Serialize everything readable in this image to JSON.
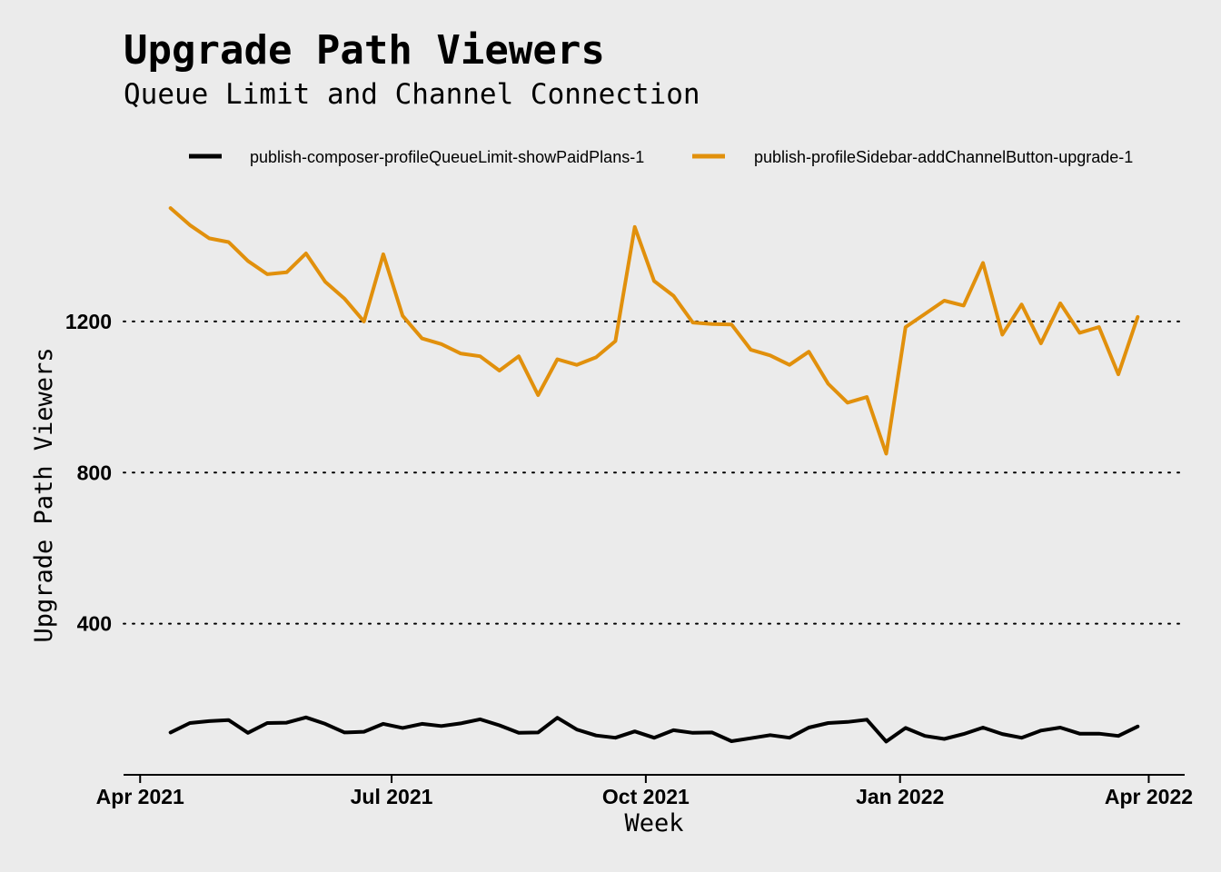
{
  "chart_data": {
    "type": "line",
    "title": "Upgrade Path Viewers",
    "subtitle": "Queue Limit and Channel Connection",
    "xlabel": "Week",
    "ylabel": "Upgrade Path Viewers",
    "x_ticks": [
      {
        "label": "Apr 2021",
        "date": "2021-04-01"
      },
      {
        "label": "Jul 2021",
        "date": "2021-07-01"
      },
      {
        "label": "Oct 2021",
        "date": "2021-10-01"
      },
      {
        "label": "Jan 2022",
        "date": "2022-01-01"
      },
      {
        "label": "Apr 2022",
        "date": "2022-04-01"
      }
    ],
    "y_ticks": [
      400,
      800,
      1200
    ],
    "xlim": [
      "2021-03-26",
      "2022-04-14"
    ],
    "ylim": [
      0,
      1570
    ],
    "grid": "horizontal dotted",
    "legend_position": "top",
    "series": [
      {
        "name": "publish-composer-profileQueueLimit-showPaidPlans-1",
        "color": "#000000",
        "points": [
          [
            "2021-04-12",
            112
          ],
          [
            "2021-04-19",
            137
          ],
          [
            "2021-04-26",
            142
          ],
          [
            "2021-05-03",
            145
          ],
          [
            "2021-05-10",
            111
          ],
          [
            "2021-05-17",
            137
          ],
          [
            "2021-05-24",
            138
          ],
          [
            "2021-05-31",
            152
          ],
          [
            "2021-06-07",
            135
          ],
          [
            "2021-06-14",
            112
          ],
          [
            "2021-06-21",
            114
          ],
          [
            "2021-06-28",
            135
          ],
          [
            "2021-07-05",
            124
          ],
          [
            "2021-07-12",
            135
          ],
          [
            "2021-07-19",
            129
          ],
          [
            "2021-07-26",
            136
          ],
          [
            "2021-08-02",
            147
          ],
          [
            "2021-08-09",
            131
          ],
          [
            "2021-08-16",
            111
          ],
          [
            "2021-08-23",
            112
          ],
          [
            "2021-08-30",
            151
          ],
          [
            "2021-09-06",
            120
          ],
          [
            "2021-09-13",
            104
          ],
          [
            "2021-09-20",
            98
          ],
          [
            "2021-09-27",
            115
          ],
          [
            "2021-10-04",
            98
          ],
          [
            "2021-10-11",
            118
          ],
          [
            "2021-10-18",
            111
          ],
          [
            "2021-10-25",
            112
          ],
          [
            "2021-11-01",
            89
          ],
          [
            "2021-11-08",
            97
          ],
          [
            "2021-11-15",
            105
          ],
          [
            "2021-11-22",
            98
          ],
          [
            "2021-11-29",
            125
          ],
          [
            "2021-12-06",
            137
          ],
          [
            "2021-12-13",
            140
          ],
          [
            "2021-12-20",
            146
          ],
          [
            "2021-12-27",
            88
          ],
          [
            "2022-01-03",
            124
          ],
          [
            "2022-01-10",
            103
          ],
          [
            "2022-01-17",
            95
          ],
          [
            "2022-01-24",
            108
          ],
          [
            "2022-01-31",
            125
          ],
          [
            "2022-02-07",
            108
          ],
          [
            "2022-02-14",
            98
          ],
          [
            "2022-02-21",
            117
          ],
          [
            "2022-02-28",
            125
          ],
          [
            "2022-03-07",
            109
          ],
          [
            "2022-03-14",
            109
          ],
          [
            "2022-03-21",
            103
          ],
          [
            "2022-03-28",
            128
          ]
        ]
      },
      {
        "name": "publish-profileSidebar-addChannelButton-upgrade-1",
        "color": "#E1900C",
        "points": [
          [
            "2021-04-12",
            1500
          ],
          [
            "2021-04-19",
            1455
          ],
          [
            "2021-04-26",
            1420
          ],
          [
            "2021-05-03",
            1410
          ],
          [
            "2021-05-10",
            1360
          ],
          [
            "2021-05-17",
            1325
          ],
          [
            "2021-05-24",
            1330
          ],
          [
            "2021-05-31",
            1380
          ],
          [
            "2021-06-07",
            1305
          ],
          [
            "2021-06-14",
            1260
          ],
          [
            "2021-06-21",
            1200
          ],
          [
            "2021-06-28",
            1378
          ],
          [
            "2021-07-05",
            1215
          ],
          [
            "2021-07-12",
            1155
          ],
          [
            "2021-07-19",
            1140
          ],
          [
            "2021-07-26",
            1115
          ],
          [
            "2021-08-02",
            1108
          ],
          [
            "2021-08-09",
            1070
          ],
          [
            "2021-08-16",
            1108
          ],
          [
            "2021-08-23",
            1005
          ],
          [
            "2021-08-30",
            1100
          ],
          [
            "2021-09-06",
            1085
          ],
          [
            "2021-09-13",
            1105
          ],
          [
            "2021-09-20",
            1148
          ],
          [
            "2021-09-27",
            1450
          ],
          [
            "2021-10-04",
            1307
          ],
          [
            "2021-10-11",
            1268
          ],
          [
            "2021-10-18",
            1197
          ],
          [
            "2021-10-25",
            1193
          ],
          [
            "2021-11-01",
            1192
          ],
          [
            "2021-11-08",
            1125
          ],
          [
            "2021-11-15",
            1110
          ],
          [
            "2021-11-22",
            1085
          ],
          [
            "2021-11-29",
            1120
          ],
          [
            "2021-12-06",
            1035
          ],
          [
            "2021-12-13",
            985
          ],
          [
            "2021-12-20",
            1000
          ],
          [
            "2021-12-27",
            850
          ],
          [
            "2022-01-03",
            1185
          ],
          [
            "2022-01-10",
            1220
          ],
          [
            "2022-01-17",
            1255
          ],
          [
            "2022-01-24",
            1242
          ],
          [
            "2022-01-31",
            1355
          ],
          [
            "2022-02-07",
            1165
          ],
          [
            "2022-02-14",
            1245
          ],
          [
            "2022-02-21",
            1142
          ],
          [
            "2022-02-28",
            1248
          ],
          [
            "2022-03-07",
            1170
          ],
          [
            "2022-03-14",
            1185
          ],
          [
            "2022-03-21",
            1060
          ],
          [
            "2022-03-28",
            1212
          ]
        ]
      }
    ]
  }
}
